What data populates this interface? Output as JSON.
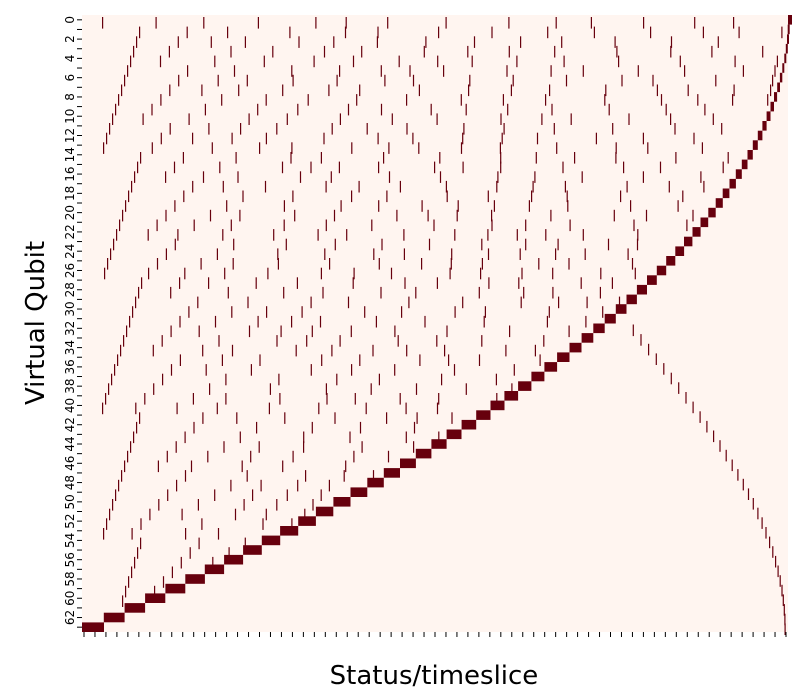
{
  "chart_data": {
    "type": "heatmap",
    "title": "",
    "xlabel": "Status/timeslice",
    "ylabel": "Virtual Qubit",
    "y_ticks": [
      "0",
      "2",
      "4",
      "6",
      "8",
      "10",
      "12",
      "14",
      "16",
      "18",
      "20",
      "22",
      "24",
      "26",
      "28",
      "30",
      "32",
      "34",
      "36",
      "38",
      "40",
      "42",
      "44",
      "46",
      "48",
      "50",
      "52",
      "54",
      "56",
      "58",
      "60",
      "62"
    ],
    "num_rows": 64,
    "num_timeslices": 2048,
    "x_tick_labels_visible": false,
    "x_tick_every": 32,
    "colormap": "Reds",
    "colors": {
      "low": "#fff5f0",
      "high": "#67000d"
    },
    "value_range": [
      0,
      1
    ],
    "colorbar": false,
    "grid": false,
    "description_of_pattern": {
      "diagonal_block_right_end_per_row": "row r is active (value 1) at its own timeslices, with the run lengths shown by the dark diagonal block",
      "upper_sparse_marks": "rows above the diagonal show isolated single-timeslice marks (value 1)",
      "lower_thin_curve": "a thin curve of single marks continues from row 32 down to row 63 near the right edge"
    }
  }
}
